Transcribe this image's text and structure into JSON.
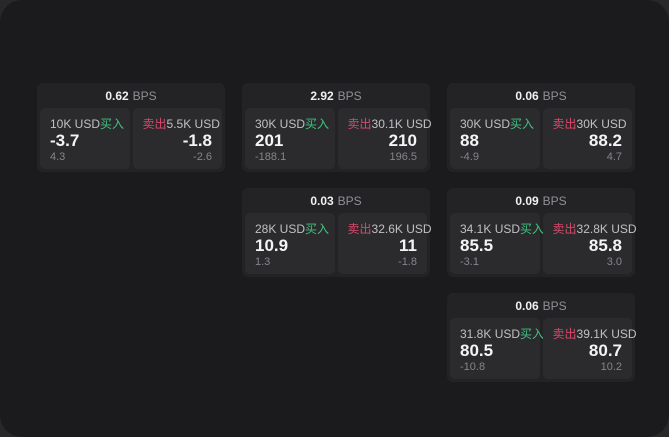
{
  "labels": {
    "buy": "买入",
    "sell": "卖出",
    "bps": "BPS"
  },
  "colors": {
    "background": "#1b1b1d",
    "card": "#232326",
    "pane": "#2b2b2e",
    "buy_green": "#3ec380",
    "sell_red": "#d6496b"
  },
  "columns": [
    {
      "cards": [
        {
          "bps": "0.62",
          "buy": {
            "size": "10K USD",
            "price": "-3.7",
            "delta": "4.3"
          },
          "sell": {
            "size": "5.5K USD",
            "price": "-1.8",
            "delta": "-2.6"
          }
        }
      ]
    },
    {
      "cards": [
        {
          "bps": "2.92",
          "buy": {
            "size": "30K USD",
            "price": "201",
            "delta": "-188.1"
          },
          "sell": {
            "size": "30.1K USD",
            "price": "210",
            "delta": "196.5"
          }
        },
        {
          "bps": "0.03",
          "buy": {
            "size": "28K USD",
            "price": "10.9",
            "delta": "1.3"
          },
          "sell": {
            "size": "32.6K USD",
            "price": "11",
            "delta": "-1.8"
          }
        }
      ]
    },
    {
      "cards": [
        {
          "bps": "0.06",
          "buy": {
            "size": "30K USD",
            "price": "88",
            "delta": "-4.9"
          },
          "sell": {
            "size": "30K USD",
            "price": "88.2",
            "delta": "4.7"
          }
        },
        {
          "bps": "0.09",
          "buy": {
            "size": "34.1K USD",
            "price": "85.5",
            "delta": "-3.1"
          },
          "sell": {
            "size": "32.8K USD",
            "price": "85.8",
            "delta": "3.0"
          }
        },
        {
          "bps": "0.06",
          "buy": {
            "size": "31.8K USD",
            "price": "80.5",
            "delta": "-10.8"
          },
          "sell": {
            "size": "39.1K USD",
            "price": "80.7",
            "delta": "10.2"
          }
        }
      ]
    }
  ]
}
